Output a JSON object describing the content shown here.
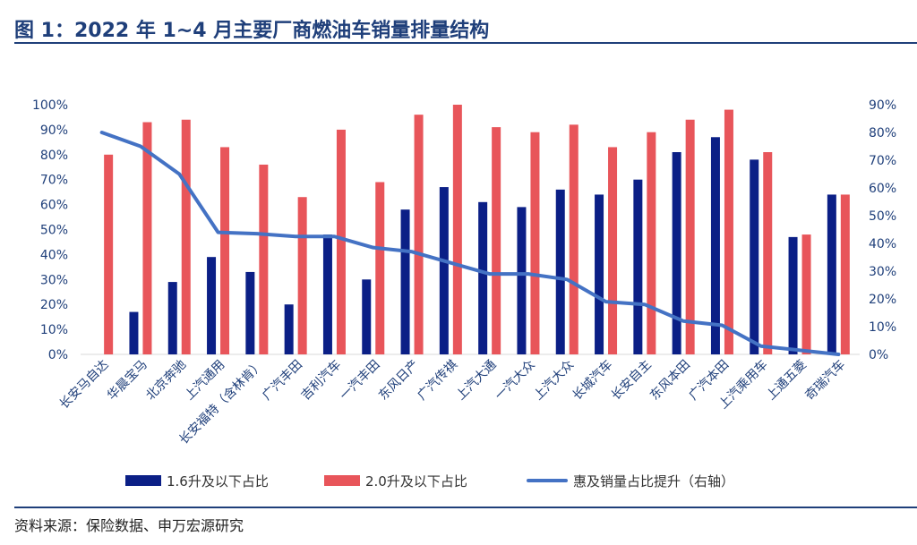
{
  "header": {
    "title": "图 1：2022 年 1~4 月主要厂商燃油车销量排量结构"
  },
  "footer": {
    "source": "资料来源：保险数据、申万宏源研究"
  },
  "colors": {
    "bar_1_6": "#0b1f86",
    "bar_2_0": "#e8555a",
    "line": "#4472c4",
    "axis_text": "#1f3f7a"
  },
  "chart_data": {
    "type": "bar",
    "categories": [
      "长安马自达",
      "华晨宝马",
      "北京奔驰",
      "上汽通用",
      "长安福特（含林肯）",
      "广汽丰田",
      "吉利汽车",
      "一汽丰田",
      "东风日产",
      "广汽传祺",
      "上汽大通",
      "一汽大众",
      "上汽大众",
      "长城汽车",
      "长安自主",
      "东风本田",
      "广汽本田",
      "上汽乘用车",
      "上通五菱",
      "奇瑞汽车"
    ],
    "series": [
      {
        "name": "1.6升及以下占比",
        "type": "bar",
        "axis": "left",
        "values": [
          0,
          17,
          29,
          39,
          33,
          20,
          48,
          30,
          58,
          67,
          61,
          59,
          66,
          64,
          70,
          81,
          87,
          78,
          47,
          64
        ]
      },
      {
        "name": "2.0升及以下占比",
        "type": "bar",
        "axis": "left",
        "values": [
          80,
          93,
          94,
          83,
          76,
          63,
          90,
          69,
          96,
          100,
          91,
          89,
          92,
          83,
          89,
          94,
          98,
          81,
          48,
          64
        ]
      },
      {
        "name": "惠及销量占比提升（右轴）",
        "type": "line",
        "axis": "right",
        "values": [
          80,
          75,
          65,
          44,
          43.5,
          42.5,
          42.5,
          38.5,
          37,
          33,
          29,
          29,
          27,
          19,
          18,
          12,
          10.5,
          3,
          1.5,
          0
        ]
      }
    ],
    "ylim_left": [
      0,
      100
    ],
    "ylim_right": [
      0,
      90
    ],
    "yticks_left": [
      "0%",
      "10%",
      "20%",
      "30%",
      "40%",
      "50%",
      "60%",
      "70%",
      "80%",
      "90%",
      "100%"
    ],
    "yticks_right": [
      "0%",
      "10%",
      "20%",
      "30%",
      "40%",
      "50%",
      "60%",
      "70%",
      "80%",
      "90%"
    ],
    "grid": false,
    "legend_position": "bottom"
  }
}
